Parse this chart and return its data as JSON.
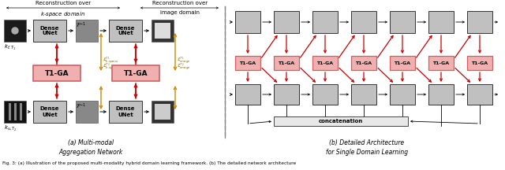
{
  "bg_color": "#ffffff",
  "box_light_gray": "#c0c0c0",
  "box_mid_gray": "#a8a8a8",
  "box_pink": "#d06060",
  "box_pink_light": "#f0b0b0",
  "arrow_red": "#cc0000",
  "arrow_black": "#000000",
  "arrow_gold": "#cc8800",
  "divider_color": "#888888",
  "panel_a_title1_line1": "Reconstruction over",
  "panel_a_title1_line2": "$k$-space domain",
  "panel_a_title2_line1": "Reconstruction over",
  "panel_a_title2_line2": "image domain",
  "panel_a_caption": "(a) Multi-modal\nAggregation Network",
  "panel_b_caption": "(b) Detailed Architecture\nfor Single Domain Learning",
  "fig_caption": "Fig. 3: (a) Illustration of the proposed multi-modality hybrid domain learning framework. (b) The detailed network architecture"
}
